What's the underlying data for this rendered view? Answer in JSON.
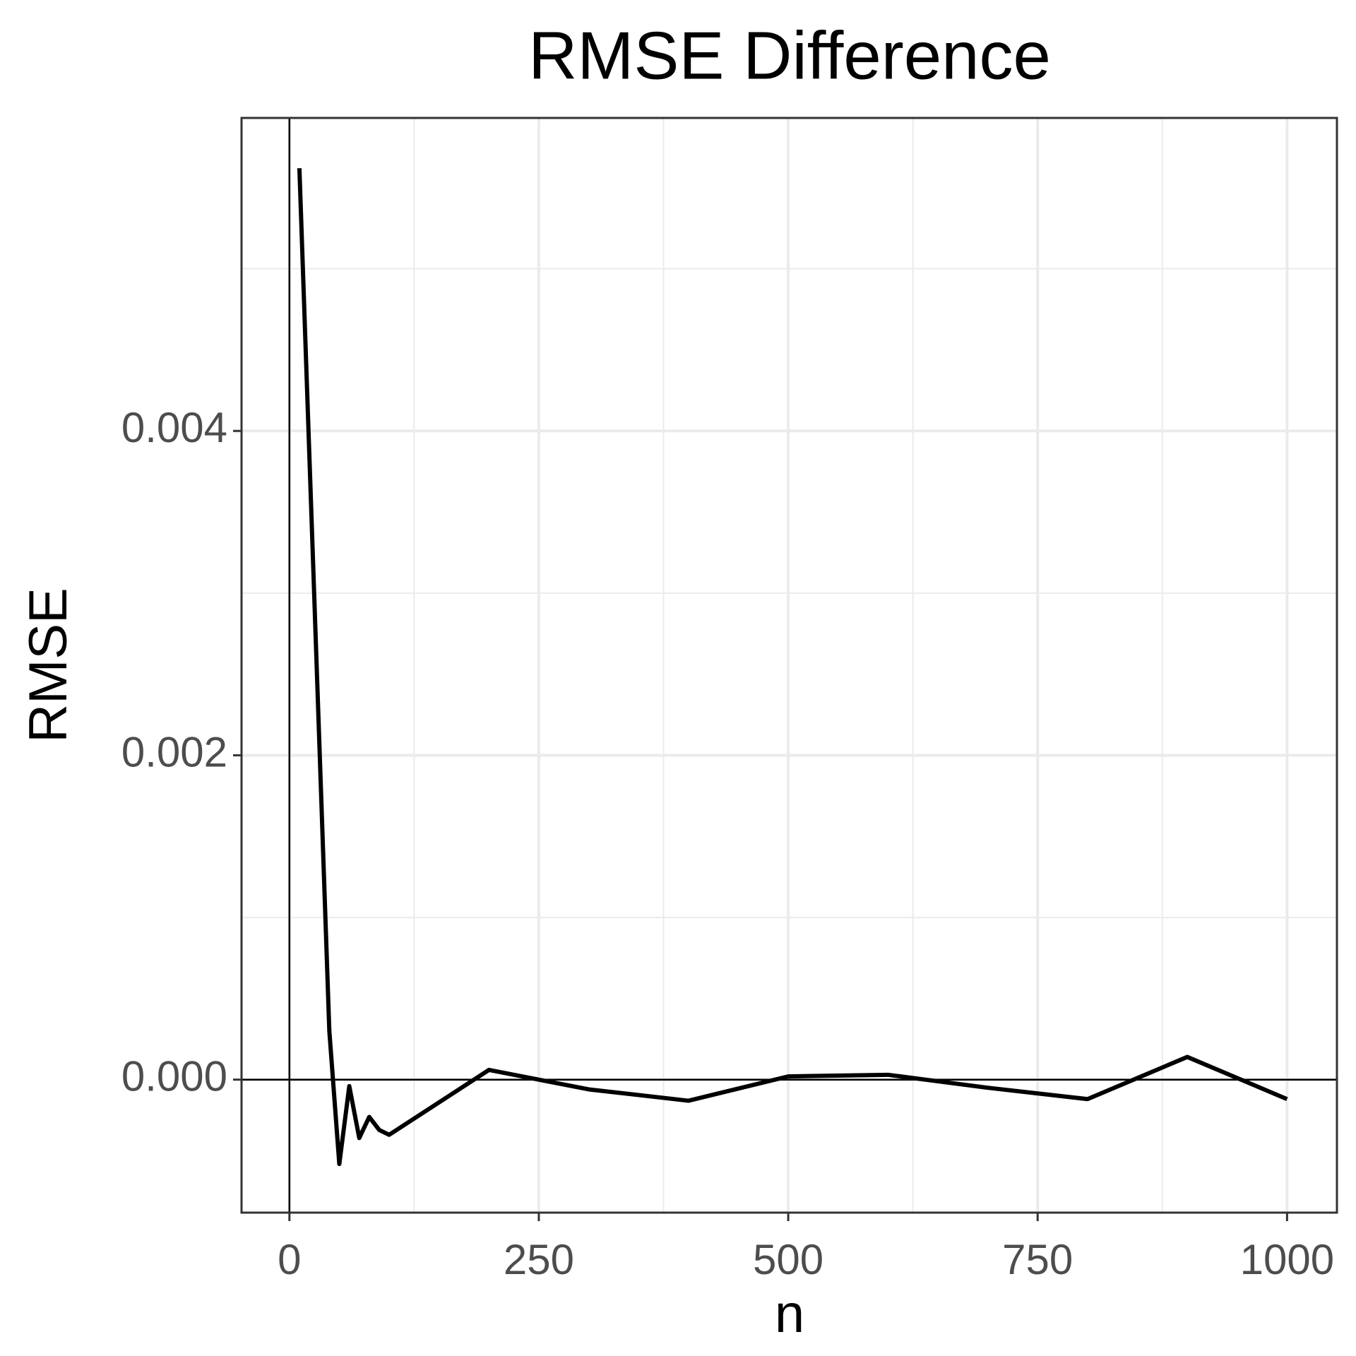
{
  "chart_data": {
    "type": "line",
    "title": "RMSE Difference",
    "x_label": "n",
    "y_label": "RMSE",
    "x": [
      10,
      40,
      50,
      60,
      70,
      80,
      90,
      100,
      200,
      300,
      400,
      500,
      600,
      700,
      800,
      900,
      1000
    ],
    "series": [
      {
        "name": "RMSE",
        "color": "#000000",
        "values": [
          0.00562,
          0.0003,
          -0.00052,
          -4e-05,
          -0.00036,
          -0.00023,
          -0.00031,
          -0.00034,
          6e-05,
          -6e-05,
          -0.00013,
          2e-05,
          3e-05,
          -5e-05,
          -0.00012,
          0.00014,
          -0.00012
        ]
      }
    ],
    "xlim": [
      -48,
      1050
    ],
    "ylim": [
      -0.00082,
      0.00593
    ],
    "xticks": [
      0,
      250,
      500,
      750,
      1000
    ],
    "yticks": [
      {
        "value": 0,
        "label": "0.000"
      },
      {
        "value": 0.002,
        "label": "0.002"
      },
      {
        "value": 0.004,
        "label": "0.004"
      }
    ],
    "x_minor_ticks": [
      125,
      375,
      625,
      875
    ],
    "y_minor_ticks": [
      0.001,
      0.003,
      0.005
    ],
    "hline": 0,
    "vline": 0,
    "grid": true
  }
}
